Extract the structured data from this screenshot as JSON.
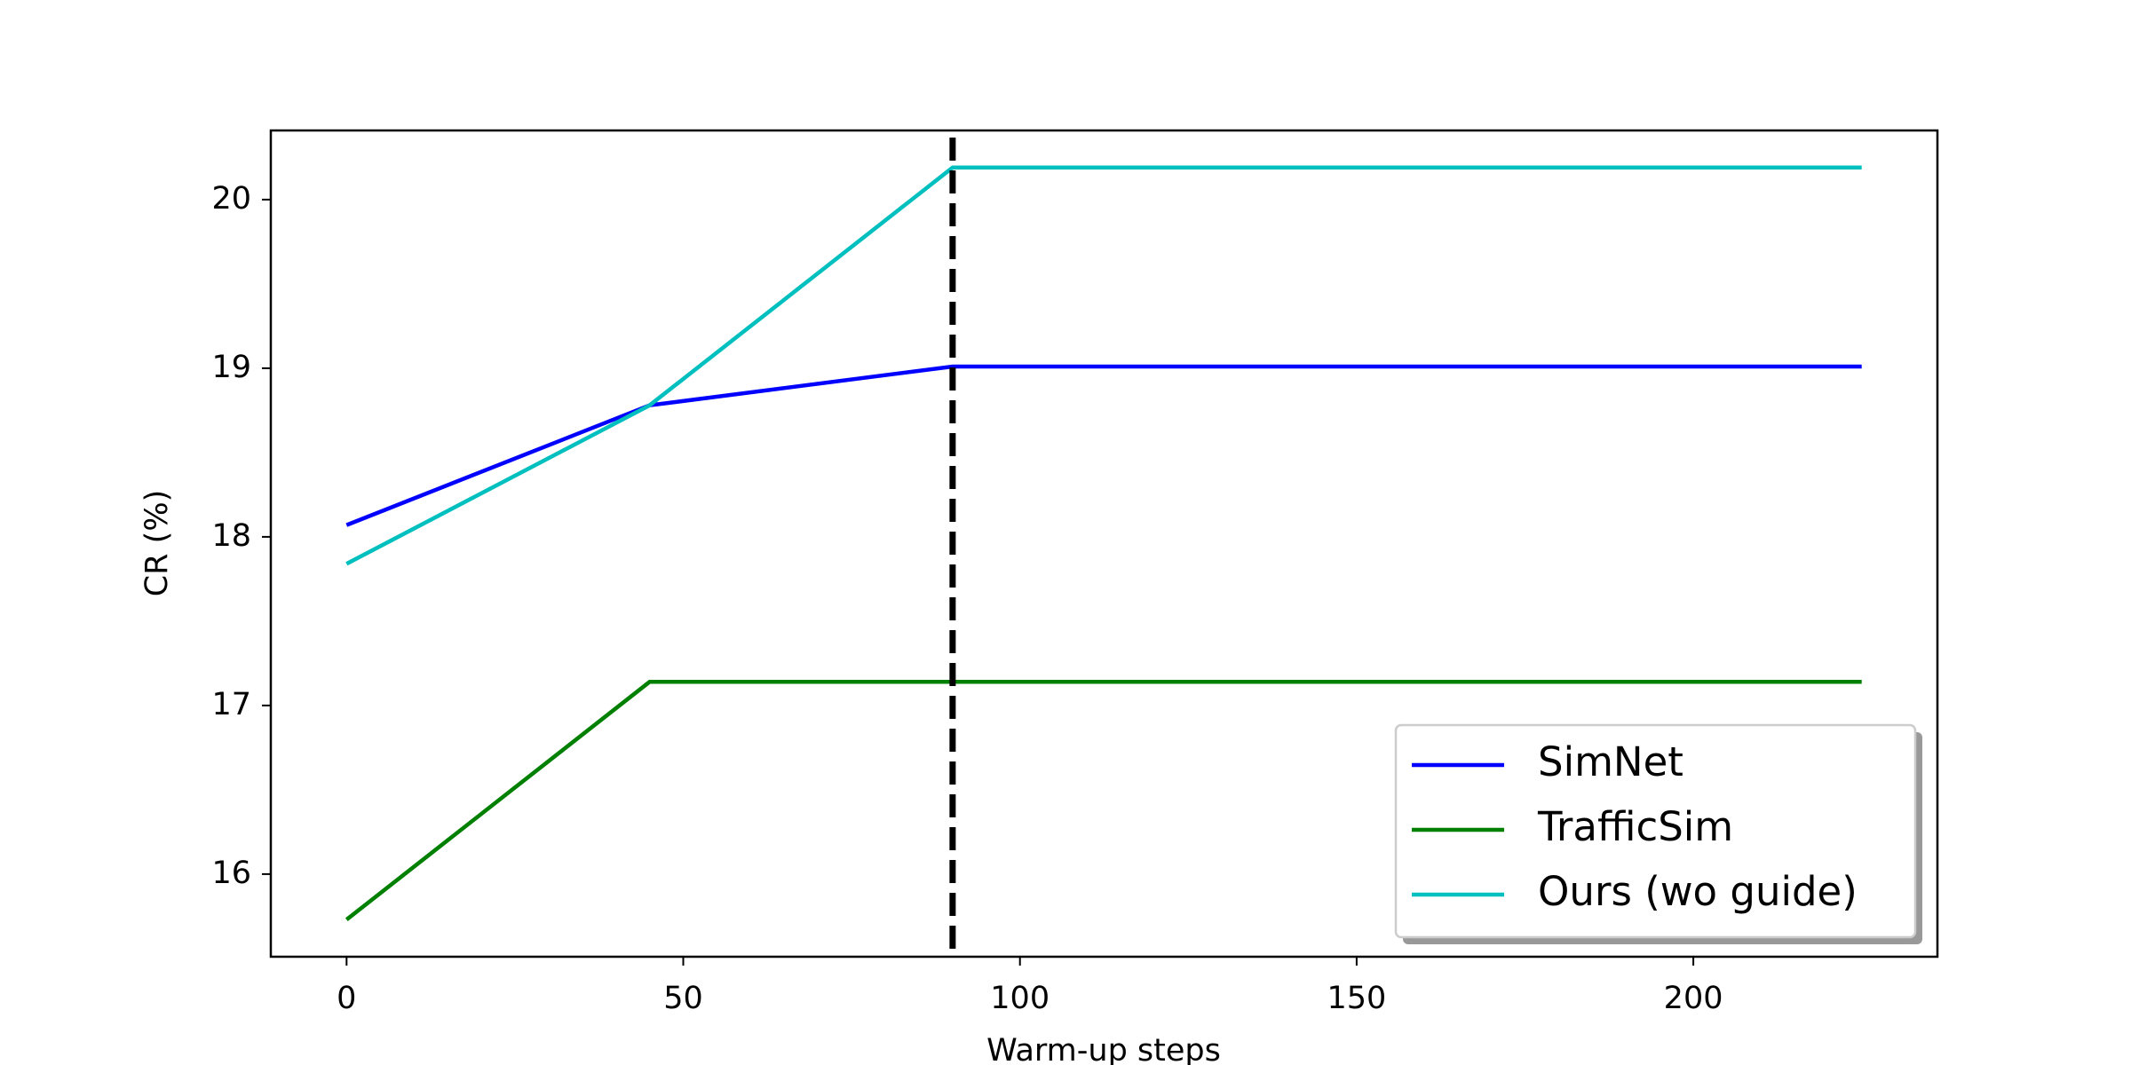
{
  "chart_data": {
    "type": "line",
    "xlabel": "Warm-up steps",
    "ylabel": "CR (%)",
    "x": [
      0,
      45,
      90,
      225
    ],
    "series": [
      {
        "name": "SimNet",
        "color": "#0000ff",
        "values": [
          18.07,
          18.78,
          19.01,
          19.01
        ]
      },
      {
        "name": "TrafficSim",
        "color": "#008000",
        "values": [
          15.73,
          17.14,
          17.14,
          17.14
        ]
      },
      {
        "name": "Ours (wo guide)",
        "color": "#00bfbf",
        "values": [
          17.84,
          18.78,
          20.19,
          20.19
        ]
      }
    ],
    "xlim": [
      -11.25,
      236.25
    ],
    "xticks": [
      0,
      50,
      100,
      150,
      200
    ],
    "ylim": [
      15.51,
      20.41
    ],
    "yticks": [
      16,
      17,
      18,
      19,
      20
    ],
    "vline": 90,
    "legend": "lower right",
    "grid": false
  }
}
